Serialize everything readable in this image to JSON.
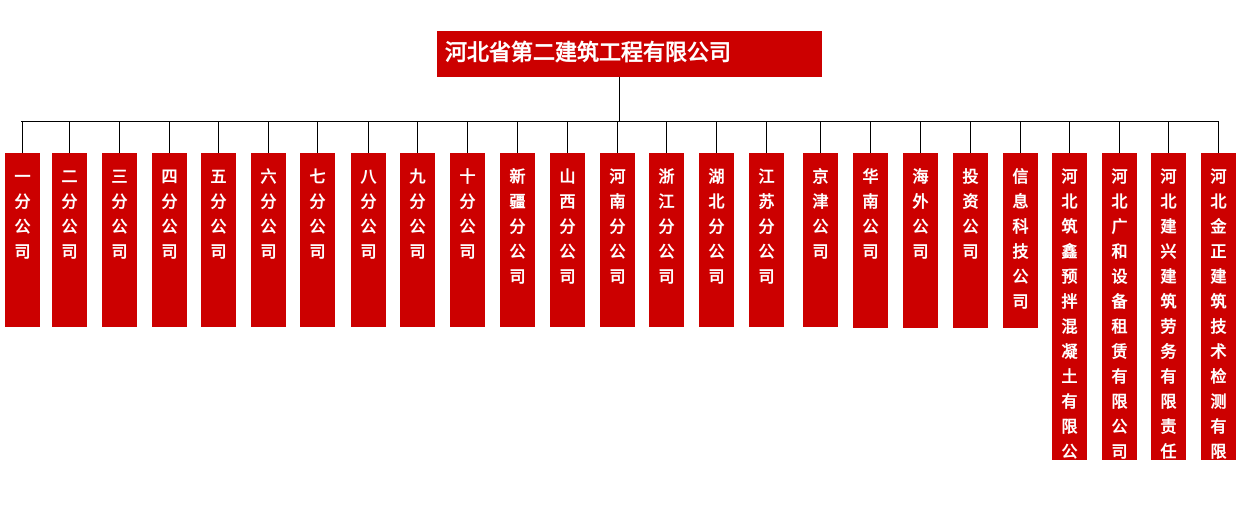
{
  "root": {
    "label": "河北省第二建筑工程有限公司"
  },
  "colors": {
    "box": "#cc0000",
    "text": "#ffffff",
    "connector": "#000000"
  },
  "children": [
    "一分公司",
    "二分公司",
    "三分公司",
    "四分公司",
    "五分公司",
    "六分公司",
    "七分公司",
    "八分公司",
    "九分公司",
    "十分公司",
    "新疆分公司",
    "山西分公司",
    "河南分公司",
    "浙江分公司",
    "湖北分公司",
    "江苏分公司",
    "京津公司",
    "华南公司",
    "海外公司",
    "投资公司",
    "信息科技公司",
    "河北筑鑫预拌混凝土有限公司",
    "河北广和设备租赁有限公司",
    "河北建兴建筑劳务有限责任公司",
    "河北金正建筑技术检测有限公司"
  ]
}
